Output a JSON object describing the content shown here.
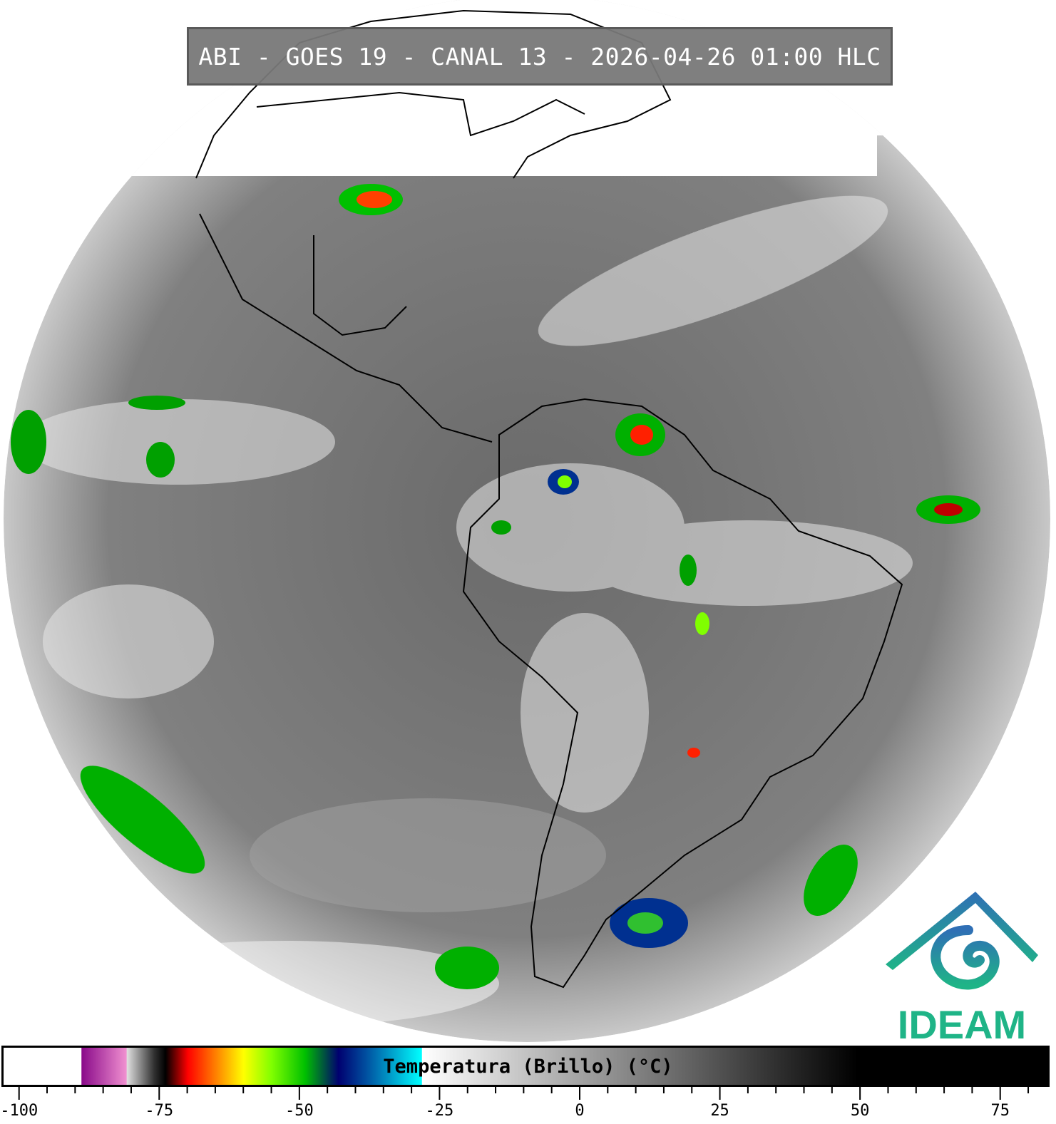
{
  "title": "ABI - GOES 19 - CANAL 13 - 2026-04-26 01:00 HLC",
  "logo": {
    "text": "IDEAM",
    "color": "#1fb487",
    "roof_color": "#2f6fb5"
  },
  "colorbar": {
    "label": "Temperatura (Brillo) (°C)",
    "range": [
      -103,
      84
    ],
    "ticks": [
      "-100",
      "-75",
      "-50",
      "-25",
      "0",
      "25",
      "50",
      "75"
    ],
    "minor_step": 5,
    "stops": [
      {
        "t": -103,
        "c": "#ffffff"
      },
      {
        "t": -89.1,
        "c": "#ffffff"
      },
      {
        "t": -89,
        "c": "#8a0a8a"
      },
      {
        "t": -81,
        "c": "#f090d0"
      },
      {
        "t": -80.9,
        "c": "#e0e0e0"
      },
      {
        "t": -76,
        "c": "#303030"
      },
      {
        "t": -74,
        "c": "#000000"
      },
      {
        "t": -70,
        "c": "#ff0000"
      },
      {
        "t": -65,
        "c": "#ff8000"
      },
      {
        "t": -60,
        "c": "#ffff00"
      },
      {
        "t": -55,
        "c": "#80ff00"
      },
      {
        "t": -49,
        "c": "#00c000"
      },
      {
        "t": -43,
        "c": "#000070"
      },
      {
        "t": -38,
        "c": "#0050a0"
      },
      {
        "t": -28.1,
        "c": "#00ffff"
      },
      {
        "t": -28,
        "c": "#ffffff"
      },
      {
        "t": 50,
        "c": "#000000"
      },
      {
        "t": 84,
        "c": "#000000"
      }
    ]
  }
}
